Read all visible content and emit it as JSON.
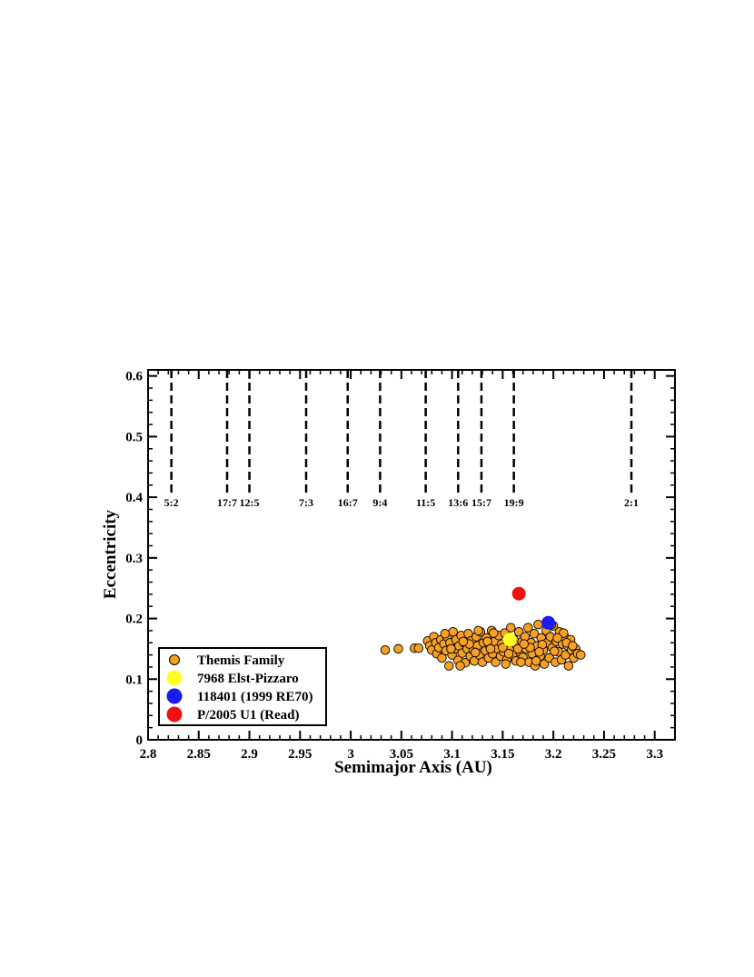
{
  "chart_data": {
    "type": "scatter",
    "xlabel": "Semimajor Axis (AU)",
    "ylabel": "Eccentricity",
    "xlim": [
      2.8,
      3.32
    ],
    "ylim": [
      0,
      0.61
    ],
    "x_ticks": [
      "2.8",
      "2.85",
      "2.9",
      "2.95",
      "3",
      "3.05",
      "3.1",
      "3.15",
      "3.2",
      "3.25",
      "3.3"
    ],
    "y_ticks": [
      "0",
      "0.1",
      "0.2",
      "0.3",
      "0.4",
      "0.5",
      "0.6"
    ],
    "grid": false,
    "legend_position": "bottom-left",
    "resonances": [
      {
        "label": "5:2",
        "a": 2.823
      },
      {
        "label": "17:7",
        "a": 2.878
      },
      {
        "label": "12:5",
        "a": 2.9
      },
      {
        "label": "7:3",
        "a": 2.956
      },
      {
        "label": "16:7",
        "a": 2.997
      },
      {
        "label": "9:4",
        "a": 3.029
      },
      {
        "label": "11:5",
        "a": 3.074
      },
      {
        "label": "13:6",
        "a": 3.106
      },
      {
        "label": "15:7",
        "a": 3.129
      },
      {
        "label": "19:9",
        "a": 3.161
      },
      {
        "label": "2:1",
        "a": 3.277
      }
    ],
    "series": [
      {
        "name": "Themis Family",
        "color": "#F7A021",
        "points": [
          [
            3.034,
            0.148
          ],
          [
            3.047,
            0.15
          ],
          [
            3.063,
            0.151
          ],
          [
            3.067,
            0.151
          ],
          [
            3.076,
            0.163
          ],
          [
            3.078,
            0.155
          ],
          [
            3.08,
            0.148
          ],
          [
            3.082,
            0.17
          ],
          [
            3.084,
            0.16
          ],
          [
            3.085,
            0.142
          ],
          [
            3.087,
            0.152
          ],
          [
            3.089,
            0.165
          ],
          [
            3.09,
            0.135
          ],
          [
            3.092,
            0.158
          ],
          [
            3.094,
            0.147
          ],
          [
            3.095,
            0.17
          ],
          [
            3.097,
            0.122
          ],
          [
            3.098,
            0.16
          ],
          [
            3.1,
            0.14
          ],
          [
            3.101,
            0.178
          ],
          [
            3.103,
            0.15
          ],
          [
            3.104,
            0.165
          ],
          [
            3.106,
            0.131
          ],
          [
            3.107,
            0.155
          ],
          [
            3.109,
            0.172
          ],
          [
            3.11,
            0.143
          ],
          [
            3.112,
            0.16
          ],
          [
            3.113,
            0.127
          ],
          [
            3.115,
            0.15
          ],
          [
            3.116,
            0.175
          ],
          [
            3.118,
            0.138
          ],
          [
            3.119,
            0.163
          ],
          [
            3.121,
            0.148
          ],
          [
            3.122,
            0.13
          ],
          [
            3.124,
            0.17
          ],
          [
            3.125,
            0.155
          ],
          [
            3.127,
            0.14
          ],
          [
            3.128,
            0.178
          ],
          [
            3.13,
            0.128
          ],
          [
            3.131,
            0.16
          ],
          [
            3.133,
            0.147
          ],
          [
            3.134,
            0.168
          ],
          [
            3.136,
            0.135
          ],
          [
            3.137,
            0.155
          ],
          [
            3.139,
            0.18
          ],
          [
            3.14,
            0.142
          ],
          [
            3.142,
            0.162
          ],
          [
            3.143,
            0.128
          ],
          [
            3.145,
            0.15
          ],
          [
            3.146,
            0.172
          ],
          [
            3.148,
            0.138
          ],
          [
            3.149,
            0.158
          ],
          [
            3.151,
            0.145
          ],
          [
            3.152,
            0.176
          ],
          [
            3.154,
            0.132
          ],
          [
            3.155,
            0.16
          ],
          [
            3.157,
            0.148
          ],
          [
            3.158,
            0.185
          ],
          [
            3.16,
            0.14
          ],
          [
            3.161,
            0.165
          ],
          [
            3.163,
            0.13
          ],
          [
            3.164,
            0.155
          ],
          [
            3.166,
            0.178
          ],
          [
            3.167,
            0.145
          ],
          [
            3.169,
            0.162
          ],
          [
            3.17,
            0.136
          ],
          [
            3.172,
            0.17
          ],
          [
            3.173,
            0.15
          ],
          [
            3.175,
            0.185
          ],
          [
            3.176,
            0.128
          ],
          [
            3.178,
            0.16
          ],
          [
            3.179,
            0.142
          ],
          [
            3.181,
            0.175
          ],
          [
            3.182,
            0.122
          ],
          [
            3.184,
            0.155
          ],
          [
            3.185,
            0.19
          ],
          [
            3.187,
            0.138
          ],
          [
            3.188,
            0.168
          ],
          [
            3.19,
            0.148
          ],
          [
            3.191,
            0.125
          ],
          [
            3.193,
            0.18
          ],
          [
            3.194,
            0.16
          ],
          [
            3.196,
            0.135
          ],
          [
            3.197,
            0.17
          ],
          [
            3.199,
            0.152
          ],
          [
            3.2,
            0.188
          ],
          [
            3.202,
            0.128
          ],
          [
            3.203,
            0.162
          ],
          [
            3.205,
            0.145
          ],
          [
            3.206,
            0.178
          ],
          [
            3.208,
            0.132
          ],
          [
            3.209,
            0.158
          ],
          [
            3.211,
            0.17
          ],
          [
            3.212,
            0.14
          ],
          [
            3.214,
            0.155
          ],
          [
            3.215,
            0.122
          ],
          [
            3.217,
            0.165
          ],
          [
            3.218,
            0.148
          ],
          [
            3.22,
            0.135
          ],
          [
            3.222,
            0.15
          ],
          [
            3.224,
            0.142
          ],
          [
            3.227,
            0.14
          ],
          [
            3.093,
            0.175
          ],
          [
            3.108,
            0.122
          ],
          [
            3.126,
            0.18
          ],
          [
            3.141,
            0.176
          ],
          [
            3.153,
            0.125
          ],
          [
            3.168,
            0.128
          ],
          [
            3.183,
            0.13
          ],
          [
            3.198,
            0.19
          ],
          [
            3.21,
            0.176
          ],
          [
            3.117,
            0.158
          ],
          [
            3.135,
            0.162
          ],
          [
            3.15,
            0.152
          ],
          [
            3.165,
            0.15
          ],
          [
            3.177,
            0.152
          ],
          [
            3.189,
            0.157
          ],
          [
            3.201,
            0.146
          ],
          [
            3.213,
            0.16
          ],
          [
            3.099,
            0.15
          ],
          [
            3.111,
            0.162
          ],
          [
            3.123,
            0.144
          ],
          [
            3.138,
            0.15
          ],
          [
            3.156,
            0.142
          ],
          [
            3.171,
            0.158
          ],
          [
            3.186,
            0.145
          ],
          [
            3.204,
            0.168
          ],
          [
            3.219,
            0.155
          ]
        ]
      },
      {
        "name": "7968 Elst-Pizzaro",
        "color": "#FFFF22",
        "points": [
          [
            3.157,
            0.165
          ]
        ]
      },
      {
        "name": "118401 (1999 RE70)",
        "color": "#1A1AF2",
        "points": [
          [
            3.195,
            0.193
          ]
        ]
      },
      {
        "name": "P/2005 U1 (Read)",
        "color": "#EE1111",
        "points": [
          [
            3.166,
            0.241
          ]
        ]
      }
    ]
  }
}
